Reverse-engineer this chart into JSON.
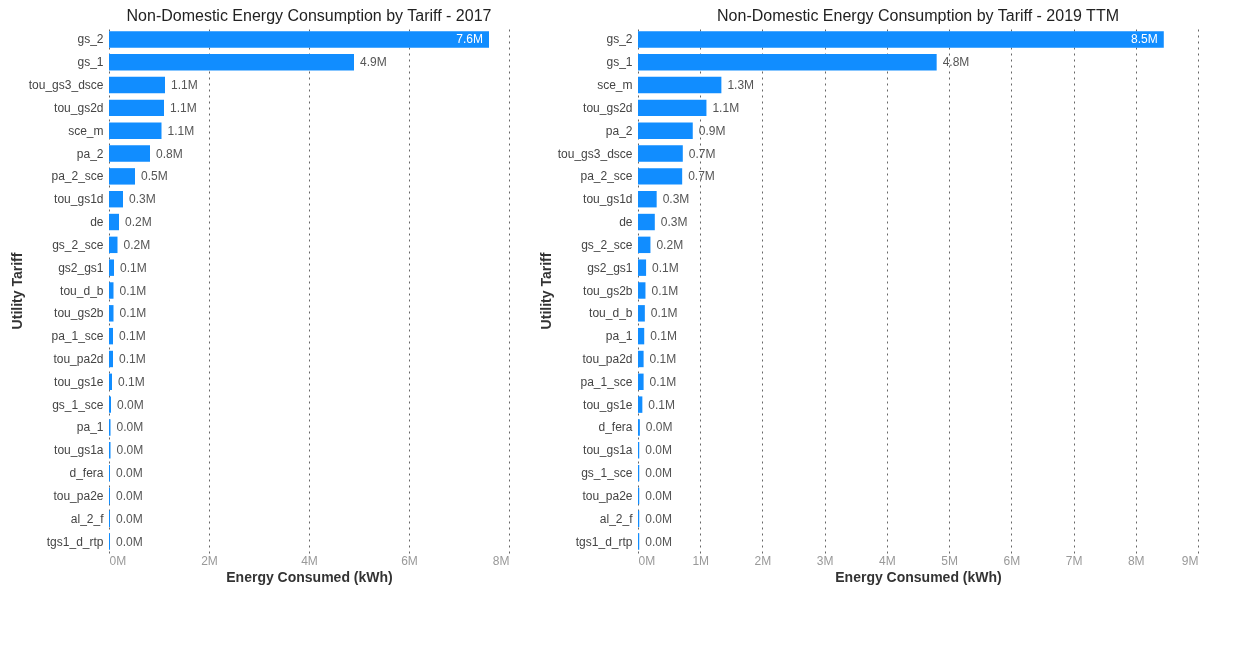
{
  "chart_data": [
    {
      "type": "bar",
      "orientation": "horizontal",
      "title": "Non-Domestic Energy Consumption by Tariff - 2017",
      "xlabel": "Energy Consumed (kWh)",
      "ylabel": "Utility Tariff",
      "categories": [
        "gs_2",
        "gs_1",
        "tou_gs3_dsce",
        "tou_gs2d",
        "sce_m",
        "pa_2",
        "pa_2_sce",
        "tou_gs1d",
        "de",
        "gs_2_sce",
        "gs2_gs1",
        "tou_d_b",
        "tou_gs2b",
        "pa_1_sce",
        "tou_pa2d",
        "tou_gs1e",
        "gs_1_sce",
        "pa_1",
        "tou_gs1a",
        "d_fera",
        "tou_pa2e",
        "al_2_f",
        "tgs1_d_rtp"
      ],
      "values": [
        7.6,
        4.9,
        1.12,
        1.1,
        1.05,
        0.82,
        0.52,
        0.28,
        0.2,
        0.17,
        0.1,
        0.09,
        0.09,
        0.08,
        0.08,
        0.06,
        0.04,
        0.03,
        0.03,
        0.02,
        0.02,
        0.02,
        0.02
      ],
      "value_labels": [
        "7.6M",
        "4.9M",
        "1.1M",
        "1.1M",
        "1.1M",
        "0.8M",
        "0.5M",
        "0.3M",
        "0.2M",
        "0.2M",
        "0.1M",
        "0.1M",
        "0.1M",
        "0.1M",
        "0.1M",
        "0.1M",
        "0.0M",
        "0.0M",
        "0.0M",
        "0.0M",
        "0.0M",
        "0.0M",
        "0.0M"
      ],
      "color": "#118dff",
      "xlim": [
        0,
        8
      ],
      "xticks": [
        {
          "value": 0,
          "label": "0M"
        },
        {
          "value": 2,
          "label": "2M"
        },
        {
          "value": 4,
          "label": "4M"
        },
        {
          "value": 6,
          "label": "6M"
        },
        {
          "value": 8,
          "label": "8M"
        }
      ],
      "grid": "x"
    },
    {
      "type": "bar",
      "orientation": "horizontal",
      "title": "Non-Domestic Energy Consumption by Tariff - 2019 TTM",
      "xlabel": "Energy Consumed (kWh)",
      "ylabel": "Utility Tariff",
      "categories": [
        "gs_2",
        "gs_1",
        "sce_m",
        "tou_gs2d",
        "pa_2",
        "tou_gs3_dsce",
        "pa_2_sce",
        "tou_gs1d",
        "de",
        "gs_2_sce",
        "gs2_gs1",
        "tou_gs2b",
        "tou_d_b",
        "pa_1",
        "tou_pa2d",
        "pa_1_sce",
        "tou_gs1e",
        "d_fera",
        "tou_gs1a",
        "gs_1_sce",
        "tou_pa2e",
        "al_2_f",
        "tgs1_d_rtp"
      ],
      "values": [
        8.45,
        4.8,
        1.34,
        1.1,
        0.88,
        0.72,
        0.71,
        0.3,
        0.27,
        0.2,
        0.13,
        0.12,
        0.11,
        0.1,
        0.09,
        0.09,
        0.07,
        0.03,
        0.02,
        0.02,
        0.02,
        0.02,
        0.02
      ],
      "value_labels": [
        "8.5M",
        "4.8M",
        "1.3M",
        "1.1M",
        "0.9M",
        "0.7M",
        "0.7M",
        "0.3M",
        "0.3M",
        "0.2M",
        "0.1M",
        "0.1M",
        "0.1M",
        "0.1M",
        "0.1M",
        "0.1M",
        "0.1M",
        "0.0M",
        "0.0M",
        "0.0M",
        "0.0M",
        "0.0M",
        "0.0M"
      ],
      "color": "#118dff",
      "xlim": [
        0,
        9
      ],
      "xticks": [
        {
          "value": 0,
          "label": "0M"
        },
        {
          "value": 1,
          "label": "1M"
        },
        {
          "value": 2,
          "label": "2M"
        },
        {
          "value": 3,
          "label": "3M"
        },
        {
          "value": 4,
          "label": "4M"
        },
        {
          "value": 5,
          "label": "5M"
        },
        {
          "value": 6,
          "label": "6M"
        },
        {
          "value": 7,
          "label": "7M"
        },
        {
          "value": 8,
          "label": "8M"
        },
        {
          "value": 9,
          "label": "9M"
        }
      ],
      "grid": "x"
    }
  ]
}
